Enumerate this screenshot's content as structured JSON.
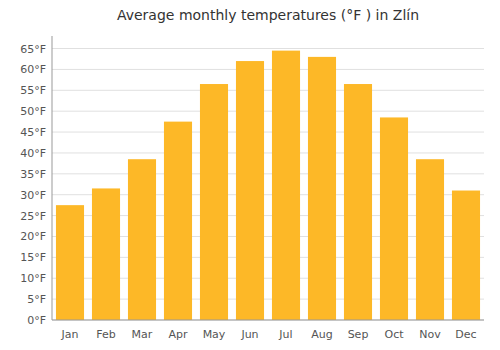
{
  "chart_data": {
    "type": "bar",
    "title": "Average monthly temperatures (°F ) in Zlín",
    "categories": [
      "Jan",
      "Feb",
      "Mar",
      "Apr",
      "May",
      "Jun",
      "Jul",
      "Aug",
      "Sep",
      "Oct",
      "Nov",
      "Dec"
    ],
    "values": [
      27.5,
      31.5,
      38.5,
      47.5,
      56.5,
      62.0,
      64.5,
      63.0,
      56.5,
      48.5,
      38.5,
      31.0
    ],
    "color": "#FDB827",
    "ylim": [
      0,
      68
    ],
    "yticks": [
      {
        "value": 0,
        "label": "0°F"
      },
      {
        "value": 5,
        "label": "5°F"
      },
      {
        "value": 10,
        "label": "10°F"
      },
      {
        "value": 15,
        "label": "15°F"
      },
      {
        "value": 20,
        "label": "20°F"
      },
      {
        "value": 25,
        "label": "25°F"
      },
      {
        "value": 30,
        "label": "30°F"
      },
      {
        "value": 35,
        "label": "35°F"
      },
      {
        "value": 40,
        "label": "40°F"
      },
      {
        "value": 45,
        "label": "45°F"
      },
      {
        "value": 50,
        "label": "50°F"
      },
      {
        "value": 55,
        "label": "55°F"
      },
      {
        "value": 60,
        "label": "60°F"
      },
      {
        "value": 65,
        "label": "65°F"
      }
    ],
    "grid": true
  }
}
